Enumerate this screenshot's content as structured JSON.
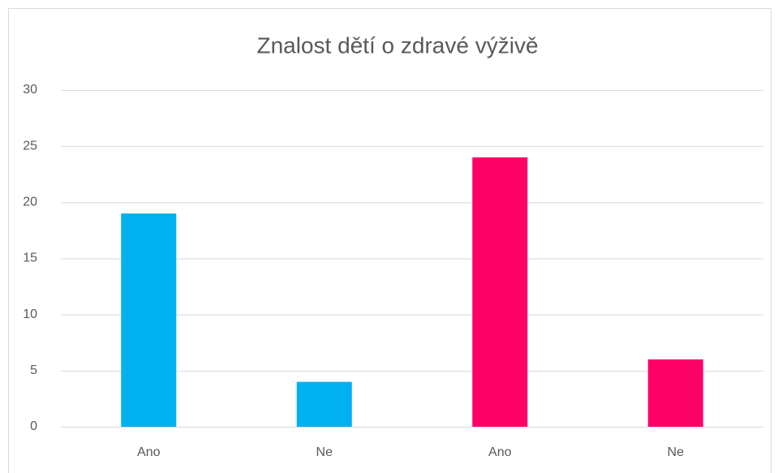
{
  "chart_data": {
    "type": "bar",
    "title": "Znalost dětí o zdravé výživě",
    "categories": [
      "Ano",
      "Ne",
      "Ano",
      "Ne"
    ],
    "values": [
      19,
      4,
      24,
      6
    ],
    "colors": [
      "#00b0f0",
      "#00b0f0",
      "#ff0066",
      "#ff0066"
    ],
    "ylim": [
      0,
      30
    ],
    "yticks": [
      0,
      5,
      10,
      15,
      20,
      25,
      30
    ],
    "grid": true
  }
}
